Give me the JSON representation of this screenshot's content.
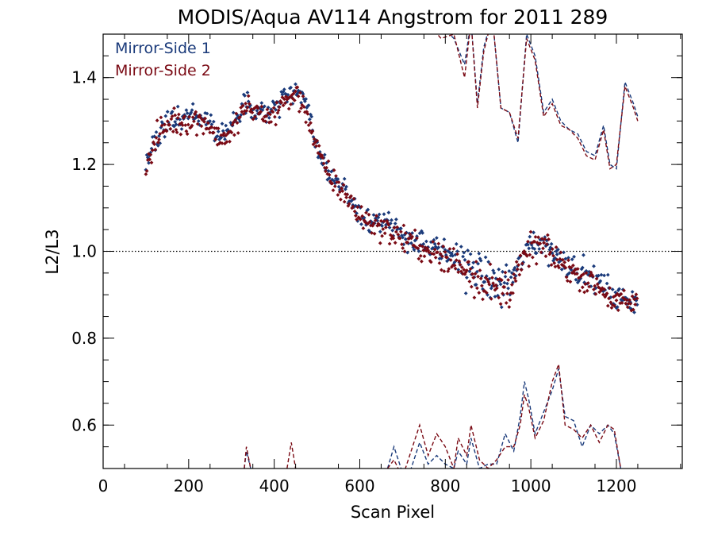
{
  "chart_data": {
    "type": "scatter",
    "title": "MODIS/Aqua AV114 Angstrom for 2011 289",
    "xlabel": "Scan Pixel",
    "ylabel": "L2/L3",
    "xlim": [
      0,
      1354
    ],
    "ylim": [
      0.5,
      1.5
    ],
    "x_ticks": [
      0,
      200,
      400,
      600,
      800,
      1000,
      1200
    ],
    "y_ticks": [
      0.6,
      0.8,
      1.0,
      1.2,
      1.4
    ],
    "x_tick_labels": [
      "0",
      "200",
      "400",
      "600",
      "800",
      "1000",
      "1200"
    ],
    "y_tick_labels": [
      "0.6",
      "0.8",
      "1.0",
      "1.2",
      "1.4"
    ],
    "reference_line": 1.0,
    "legend_position": "top-left",
    "colors": {
      "ms1": "#1a3a7a",
      "ms2": "#7a0a14",
      "reference": "#000000"
    },
    "series": [
      {
        "name": "Mirror-Side 1",
        "mean_anchors": [
          [
            100,
            1.2
          ],
          [
            130,
            1.27
          ],
          [
            160,
            1.3
          ],
          [
            200,
            1.31
          ],
          [
            240,
            1.31
          ],
          [
            270,
            1.27
          ],
          [
            300,
            1.28
          ],
          [
            330,
            1.34
          ],
          [
            360,
            1.33
          ],
          [
            390,
            1.32
          ],
          [
            420,
            1.35
          ],
          [
            450,
            1.37
          ],
          [
            470,
            1.35
          ],
          [
            500,
            1.24
          ],
          [
            530,
            1.18
          ],
          [
            560,
            1.15
          ],
          [
            600,
            1.09
          ],
          [
            640,
            1.07
          ],
          [
            680,
            1.05
          ],
          [
            720,
            1.03
          ],
          [
            760,
            1.01
          ],
          [
            800,
            0.99
          ],
          [
            840,
            0.98
          ],
          [
            880,
            0.95
          ],
          [
            920,
            0.92
          ],
          [
            950,
            0.93
          ],
          [
            980,
            0.98
          ],
          [
            1000,
            1.02
          ],
          [
            1030,
            1.02
          ],
          [
            1060,
            0.99
          ],
          [
            1090,
            0.97
          ],
          [
            1120,
            0.95
          ],
          [
            1160,
            0.93
          ],
          [
            1200,
            0.89
          ],
          [
            1240,
            0.89
          ]
        ],
        "upper_envelope": [
          [
            765,
            1.55
          ],
          [
            790,
            1.52
          ],
          [
            820,
            1.49
          ],
          [
            845,
            1.43
          ],
          [
            860,
            1.53
          ],
          [
            875,
            1.34
          ],
          [
            890,
            1.47
          ],
          [
            910,
            1.54
          ],
          [
            930,
            1.33
          ],
          [
            950,
            1.32
          ],
          [
            970,
            1.25
          ],
          [
            990,
            1.5
          ],
          [
            1010,
            1.45
          ],
          [
            1030,
            1.32
          ],
          [
            1050,
            1.35
          ],
          [
            1070,
            1.3
          ],
          [
            1090,
            1.28
          ],
          [
            1110,
            1.27
          ],
          [
            1130,
            1.23
          ],
          [
            1150,
            1.22
          ],
          [
            1170,
            1.29
          ],
          [
            1185,
            1.2
          ],
          [
            1200,
            1.19
          ],
          [
            1220,
            1.39
          ],
          [
            1240,
            1.34
          ],
          [
            1250,
            1.31
          ]
        ],
        "lower_envelope": [
          [
            330,
            0.5
          ],
          [
            335,
            0.54
          ],
          [
            345,
            0.5
          ],
          [
            665,
            0.5
          ],
          [
            680,
            0.55
          ],
          [
            700,
            0.49
          ],
          [
            720,
            0.5
          ],
          [
            740,
            0.56
          ],
          [
            760,
            0.51
          ],
          [
            780,
            0.53
          ],
          [
            800,
            0.51
          ],
          [
            820,
            0.5
          ],
          [
            830,
            0.54
          ],
          [
            850,
            0.51
          ],
          [
            860,
            0.57
          ],
          [
            880,
            0.5
          ],
          [
            900,
            0.51
          ],
          [
            920,
            0.51
          ],
          [
            940,
            0.58
          ],
          [
            960,
            0.54
          ],
          [
            975,
            0.62
          ],
          [
            985,
            0.7
          ],
          [
            995,
            0.66
          ],
          [
            1010,
            0.58
          ],
          [
            1030,
            0.63
          ],
          [
            1050,
            0.68
          ],
          [
            1065,
            0.73
          ],
          [
            1080,
            0.62
          ],
          [
            1100,
            0.61
          ],
          [
            1120,
            0.55
          ],
          [
            1140,
            0.6
          ],
          [
            1160,
            0.58
          ],
          [
            1180,
            0.6
          ],
          [
            1195,
            0.58
          ],
          [
            1210,
            0.5
          ]
        ]
      },
      {
        "name": "Mirror-Side 2",
        "mean_anchors": [
          [
            100,
            1.19
          ],
          [
            130,
            1.27
          ],
          [
            160,
            1.3
          ],
          [
            200,
            1.3
          ],
          [
            240,
            1.3
          ],
          [
            270,
            1.26
          ],
          [
            300,
            1.27
          ],
          [
            330,
            1.33
          ],
          [
            360,
            1.32
          ],
          [
            390,
            1.31
          ],
          [
            420,
            1.34
          ],
          [
            450,
            1.36
          ],
          [
            470,
            1.34
          ],
          [
            500,
            1.23
          ],
          [
            530,
            1.17
          ],
          [
            560,
            1.14
          ],
          [
            600,
            1.08
          ],
          [
            640,
            1.06
          ],
          [
            680,
            1.04
          ],
          [
            720,
            1.02
          ],
          [
            760,
            1.0
          ],
          [
            800,
            0.98
          ],
          [
            840,
            0.97
          ],
          [
            880,
            0.94
          ],
          [
            920,
            0.91
          ],
          [
            950,
            0.92
          ],
          [
            980,
            0.97
          ],
          [
            1000,
            1.01
          ],
          [
            1030,
            1.01
          ],
          [
            1060,
            0.98
          ],
          [
            1090,
            0.96
          ],
          [
            1120,
            0.94
          ],
          [
            1160,
            0.92
          ],
          [
            1200,
            0.88
          ],
          [
            1240,
            0.88
          ]
        ],
        "upper_envelope": [
          [
            765,
            1.52
          ],
          [
            790,
            1.49
          ],
          [
            820,
            1.5
          ],
          [
            845,
            1.4
          ],
          [
            860,
            1.53
          ],
          [
            875,
            1.33
          ],
          [
            890,
            1.46
          ],
          [
            910,
            1.54
          ],
          [
            930,
            1.33
          ],
          [
            950,
            1.32
          ],
          [
            970,
            1.26
          ],
          [
            990,
            1.49
          ],
          [
            1010,
            1.44
          ],
          [
            1030,
            1.31
          ],
          [
            1050,
            1.34
          ],
          [
            1070,
            1.29
          ],
          [
            1090,
            1.28
          ],
          [
            1110,
            1.26
          ],
          [
            1130,
            1.22
          ],
          [
            1150,
            1.21
          ],
          [
            1170,
            1.28
          ],
          [
            1185,
            1.19
          ],
          [
            1200,
            1.2
          ],
          [
            1220,
            1.38
          ],
          [
            1240,
            1.33
          ],
          [
            1250,
            1.3
          ]
        ],
        "lower_envelope": [
          [
            330,
            0.5
          ],
          [
            335,
            0.55
          ],
          [
            345,
            0.5
          ],
          [
            430,
            0.5
          ],
          [
            440,
            0.56
          ],
          [
            450,
            0.5
          ],
          [
            665,
            0.5
          ],
          [
            680,
            0.52
          ],
          [
            700,
            0.48
          ],
          [
            720,
            0.54
          ],
          [
            740,
            0.6
          ],
          [
            760,
            0.53
          ],
          [
            780,
            0.58
          ],
          [
            800,
            0.55
          ],
          [
            820,
            0.5
          ],
          [
            830,
            0.57
          ],
          [
            850,
            0.53
          ],
          [
            860,
            0.6
          ],
          [
            880,
            0.52
          ],
          [
            900,
            0.5
          ],
          [
            920,
            0.52
          ],
          [
            940,
            0.55
          ],
          [
            960,
            0.55
          ],
          [
            975,
            0.6
          ],
          [
            985,
            0.67
          ],
          [
            995,
            0.64
          ],
          [
            1010,
            0.57
          ],
          [
            1030,
            0.61
          ],
          [
            1050,
            0.7
          ],
          [
            1065,
            0.74
          ],
          [
            1080,
            0.6
          ],
          [
            1100,
            0.59
          ],
          [
            1120,
            0.57
          ],
          [
            1140,
            0.6
          ],
          [
            1160,
            0.56
          ],
          [
            1180,
            0.6
          ],
          [
            1195,
            0.59
          ],
          [
            1210,
            0.5
          ]
        ]
      }
    ]
  }
}
